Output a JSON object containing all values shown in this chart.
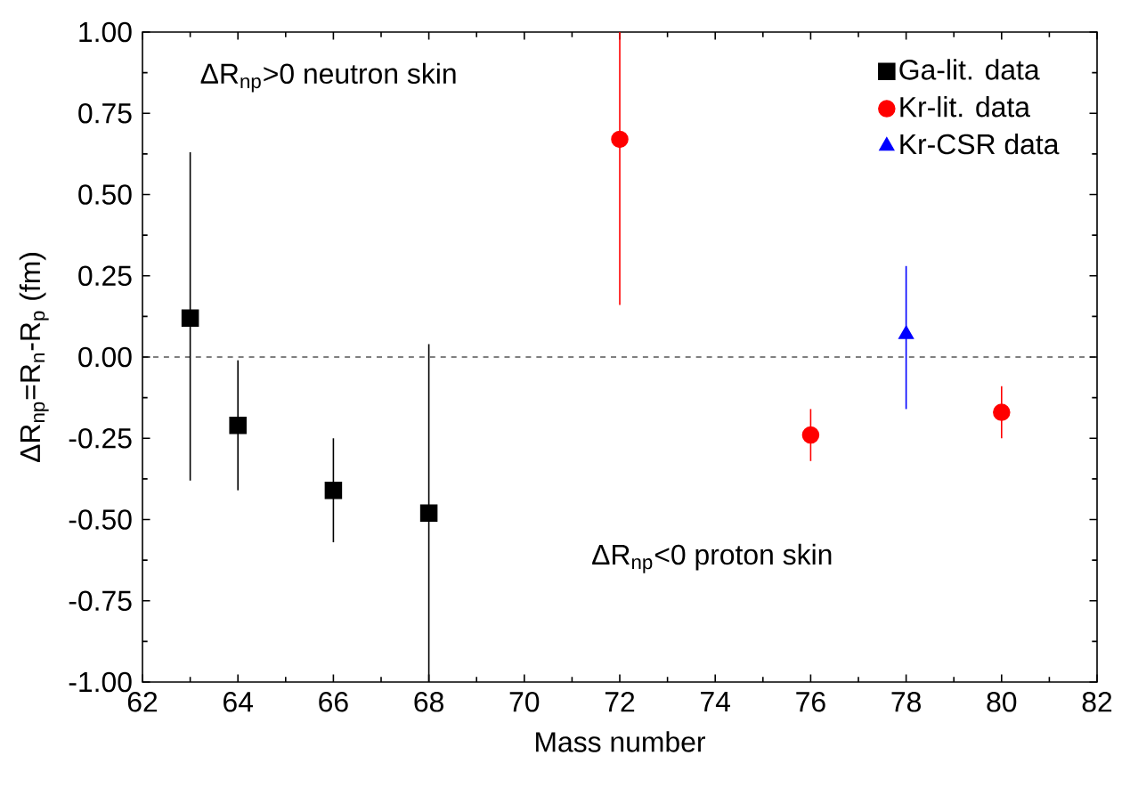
{
  "chart_data": {
    "type": "scatter",
    "xlabel": "Mass number",
    "ylabel": "ΔR$_{np}$=R$_{n}$-R$_{p}$ (fm)",
    "xlim": [
      62,
      82
    ],
    "xticks": [
      62,
      64,
      66,
      68,
      70,
      72,
      74,
      76,
      78,
      80,
      82
    ],
    "ylim": [
      -1.0,
      1.0
    ],
    "yticks": [
      {
        "value": -1.0,
        "label": "-1.00"
      },
      {
        "value": -0.75,
        "label": "-0.75"
      },
      {
        "value": -0.5,
        "label": "-0.50"
      },
      {
        "value": -0.25,
        "label": "-0.25"
      },
      {
        "value": 0,
        "label": "0.00"
      },
      {
        "value": 0.25,
        "label": "0.25"
      },
      {
        "value": 0.5,
        "label": "0.50"
      },
      {
        "value": 0.75,
        "label": "0.75"
      },
      {
        "value": 1.0,
        "label": "1.00"
      }
    ],
    "legend": "top right",
    "grid": false,
    "series": [
      {
        "name": "Ga-lit. data",
        "color": "#000000",
        "marker": "square",
        "x": [
          63,
          64,
          66,
          68
        ],
        "values": [
          0.12,
          -0.21,
          -0.41,
          -0.48
        ],
        "errors": [
          [
            -0.38,
            0.63
          ],
          [
            -0.41,
            -0.01
          ],
          [
            -0.57,
            -0.25
          ],
          [
            -1.0,
            0.04
          ]
        ]
      },
      {
        "name": "Kr-lit. data",
        "color": "#ff0000",
        "marker": "circle",
        "x": [
          72,
          76,
          80
        ],
        "values": [
          0.67,
          -0.24,
          -0.17
        ],
        "errors": [
          [
            0.16,
            1.0
          ],
          [
            -0.32,
            -0.16
          ],
          [
            -0.25,
            -0.09
          ]
        ]
      },
      {
        "name": "Kr-CSR data",
        "color": "#0000ff",
        "marker": "triangle",
        "x": [
          78
        ],
        "values": [
          0.07
        ],
        "errors": [
          [
            -0.16,
            0.28
          ]
        ]
      }
    ],
    "ref_lines": [
      {
        "axis": "y",
        "value": 0,
        "line_style": "dashed",
        "color": "#000000"
      }
    ],
    "annotations": [
      "ΔR$_{np}$>0 neutron skin",
      "ΔR$_{np}$<0 proton skin"
    ]
  }
}
